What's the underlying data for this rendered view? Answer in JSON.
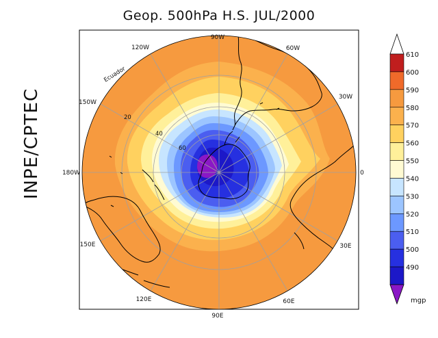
{
  "title": "Geop. 500hPa H.S. JUL/2000",
  "side_label": "INPE/CPTEC",
  "map": {
    "projection": "south-polar-stereographic",
    "longitude_labels": [
      "90W",
      "60W",
      "30W",
      "0",
      "30E",
      "60E",
      "90E",
      "120E",
      "150E",
      "180W",
      "150W",
      "120W"
    ],
    "latitude_labels": [
      "Ecuador",
      "20",
      "40",
      "60"
    ]
  },
  "colorbar": {
    "unit": "mgp",
    "ticks": [
      "610",
      "600",
      "590",
      "580",
      "570",
      "560",
      "550",
      "540",
      "530",
      "520",
      "510",
      "500",
      "490"
    ],
    "colors": [
      "#ffffff",
      "#c01e1e",
      "#f06a2a",
      "#f69a3f",
      "#fbb14d",
      "#ffd15f",
      "#fff09a",
      "#fffbd3",
      "#c7e5ff",
      "#9cc5ff",
      "#6c98ff",
      "#4b5ef0",
      "#2630e0",
      "#1c18c8",
      "#8a18c6"
    ]
  }
}
